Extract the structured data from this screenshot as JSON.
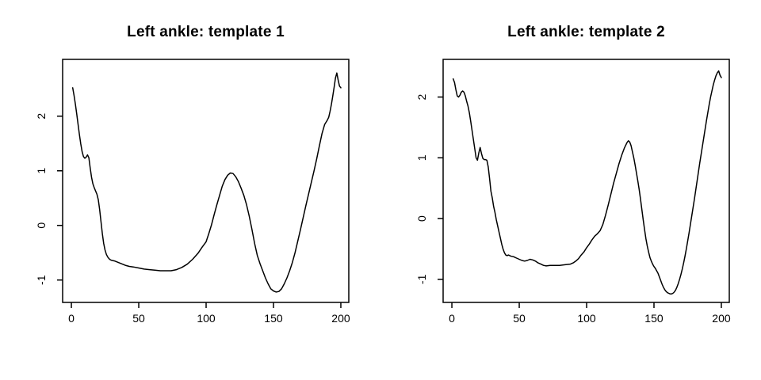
{
  "figure": {
    "background": "#ffffff",
    "line_color": "#000000",
    "text_color": "#000000"
  },
  "chart_data": [
    {
      "type": "line",
      "title": "Left ankle: template 1",
      "xlabel": "",
      "ylabel": "",
      "grid": false,
      "legend_position": "none",
      "x_ticks": [
        0,
        50,
        100,
        150,
        200
      ],
      "y_ticks": [
        -1,
        0,
        1,
        2
      ],
      "xlim": [
        -6.5,
        205.9
      ],
      "ylim": [
        -1.41,
        3.04
      ],
      "series": [
        {
          "name": "template 1",
          "color": "#000000",
          "points": [
            [
              1,
              2.52
            ],
            [
              2,
              2.38
            ],
            [
              3,
              2.22
            ],
            [
              4,
              2.04
            ],
            [
              5,
              1.85
            ],
            [
              6,
              1.66
            ],
            [
              7,
              1.49
            ],
            [
              8,
              1.35
            ],
            [
              9,
              1.26
            ],
            [
              10,
              1.23
            ],
            [
              11,
              1.25
            ],
            [
              12,
              1.29
            ],
            [
              13,
              1.24
            ],
            [
              14,
              1.05
            ],
            [
              15,
              0.88
            ],
            [
              16,
              0.76
            ],
            [
              17,
              0.69
            ],
            [
              18,
              0.63
            ],
            [
              19,
              0.57
            ],
            [
              20,
              0.47
            ],
            [
              21,
              0.29
            ],
            [
              22,
              0.07
            ],
            [
              23,
              -0.15
            ],
            [
              24,
              -0.33
            ],
            [
              25,
              -0.45
            ],
            [
              26,
              -0.53
            ],
            [
              27,
              -0.58
            ],
            [
              28,
              -0.61
            ],
            [
              29,
              -0.63
            ],
            [
              30,
              -0.64
            ],
            [
              32,
              -0.65
            ],
            [
              34,
              -0.67
            ],
            [
              36,
              -0.69
            ],
            [
              38,
              -0.71
            ],
            [
              40,
              -0.73
            ],
            [
              43,
              -0.75
            ],
            [
              46,
              -0.76
            ],
            [
              50,
              -0.78
            ],
            [
              54,
              -0.8
            ],
            [
              58,
              -0.81
            ],
            [
              62,
              -0.82
            ],
            [
              66,
              -0.83
            ],
            [
              70,
              -0.83
            ],
            [
              74,
              -0.83
            ],
            [
              78,
              -0.81
            ],
            [
              82,
              -0.77
            ],
            [
              86,
              -0.71
            ],
            [
              90,
              -0.62
            ],
            [
              94,
              -0.51
            ],
            [
              97,
              -0.4
            ],
            [
              100,
              -0.3
            ],
            [
              102,
              -0.15
            ],
            [
              104,
              0.01
            ],
            [
              106,
              0.2
            ],
            [
              108,
              0.38
            ],
            [
              110,
              0.55
            ],
            [
              112,
              0.72
            ],
            [
              114,
              0.84
            ],
            [
              116,
              0.92
            ],
            [
              118,
              0.96
            ],
            [
              120,
              0.95
            ],
            [
              122,
              0.89
            ],
            [
              124,
              0.8
            ],
            [
              126,
              0.68
            ],
            [
              128,
              0.55
            ],
            [
              130,
              0.38
            ],
            [
              132,
              0.17
            ],
            [
              134,
              -0.07
            ],
            [
              136,
              -0.33
            ],
            [
              138,
              -0.55
            ],
            [
              140,
              -0.7
            ],
            [
              142,
              -0.83
            ],
            [
              144,
              -0.96
            ],
            [
              146,
              -1.07
            ],
            [
              148,
              -1.16
            ],
            [
              150,
              -1.2
            ],
            [
              152,
              -1.22
            ],
            [
              154,
              -1.21
            ],
            [
              156,
              -1.16
            ],
            [
              158,
              -1.07
            ],
            [
              160,
              -0.96
            ],
            [
              162,
              -0.83
            ],
            [
              164,
              -0.68
            ],
            [
              166,
              -0.5
            ],
            [
              168,
              -0.29
            ],
            [
              170,
              -0.08
            ],
            [
              172,
              0.14
            ],
            [
              174,
              0.36
            ],
            [
              176,
              0.57
            ],
            [
              178,
              0.78
            ],
            [
              180,
              0.99
            ],
            [
              182,
              1.21
            ],
            [
              184,
              1.45
            ],
            [
              186,
              1.68
            ],
            [
              188,
              1.85
            ],
            [
              190,
              1.93
            ],
            [
              191,
              1.98
            ],
            [
              192,
              2.09
            ],
            [
              193,
              2.22
            ],
            [
              194,
              2.37
            ],
            [
              195,
              2.53
            ],
            [
              196,
              2.7
            ],
            [
              197,
              2.79
            ],
            [
              198,
              2.66
            ],
            [
              199,
              2.55
            ],
            [
              200,
              2.52
            ]
          ]
        }
      ]
    },
    {
      "type": "line",
      "title": "Left ankle: template 2",
      "xlabel": "",
      "ylabel": "",
      "grid": false,
      "legend_position": "none",
      "x_ticks": [
        0,
        50,
        100,
        150,
        200
      ],
      "y_ticks": [
        -1,
        0,
        1,
        2
      ],
      "xlim": [
        -6.5,
        205.9
      ],
      "ylim": [
        -1.38,
        2.62
      ],
      "series": [
        {
          "name": "template 2",
          "color": "#000000",
          "points": [
            [
              1,
              2.3
            ],
            [
              2,
              2.24
            ],
            [
              3,
              2.12
            ],
            [
              4,
              2.02
            ],
            [
              5,
              2.0
            ],
            [
              6,
              2.03
            ],
            [
              7,
              2.08
            ],
            [
              8,
              2.1
            ],
            [
              9,
              2.08
            ],
            [
              10,
              2.02
            ],
            [
              11,
              1.93
            ],
            [
              12,
              1.85
            ],
            [
              13,
              1.74
            ],
            [
              14,
              1.6
            ],
            [
              15,
              1.45
            ],
            [
              16,
              1.3
            ],
            [
              17,
              1.15
            ],
            [
              18,
              1.0
            ],
            [
              19,
              0.96
            ],
            [
              20,
              1.08
            ],
            [
              21,
              1.17
            ],
            [
              22,
              1.07
            ],
            [
              23,
              0.99
            ],
            [
              24,
              0.97
            ],
            [
              25,
              0.97
            ],
            [
              26,
              0.96
            ],
            [
              27,
              0.85
            ],
            [
              28,
              0.66
            ],
            [
              29,
              0.45
            ],
            [
              30,
              0.34
            ],
            [
              31,
              0.2
            ],
            [
              32,
              0.1
            ],
            [
              33,
              -0.02
            ],
            [
              34,
              -0.12
            ],
            [
              35,
              -0.22
            ],
            [
              36,
              -0.32
            ],
            [
              37,
              -0.42
            ],
            [
              38,
              -0.5
            ],
            [
              39,
              -0.56
            ],
            [
              40,
              -0.6
            ],
            [
              41,
              -0.61
            ],
            [
              42,
              -0.6
            ],
            [
              43,
              -0.61
            ],
            [
              44,
              -0.62
            ],
            [
              46,
              -0.63
            ],
            [
              48,
              -0.65
            ],
            [
              50,
              -0.67
            ],
            [
              52,
              -0.69
            ],
            [
              54,
              -0.7
            ],
            [
              56,
              -0.69
            ],
            [
              58,
              -0.67
            ],
            [
              60,
              -0.68
            ],
            [
              62,
              -0.7
            ],
            [
              64,
              -0.73
            ],
            [
              66,
              -0.75
            ],
            [
              68,
              -0.77
            ],
            [
              70,
              -0.78
            ],
            [
              73,
              -0.77
            ],
            [
              76,
              -0.77
            ],
            [
              80,
              -0.77
            ],
            [
              84,
              -0.76
            ],
            [
              88,
              -0.75
            ],
            [
              90,
              -0.73
            ],
            [
              92,
              -0.7
            ],
            [
              94,
              -0.66
            ],
            [
              96,
              -0.6
            ],
            [
              98,
              -0.55
            ],
            [
              100,
              -0.48
            ],
            [
              102,
              -0.42
            ],
            [
              104,
              -0.35
            ],
            [
              106,
              -0.29
            ],
            [
              108,
              -0.25
            ],
            [
              110,
              -0.2
            ],
            [
              112,
              -0.1
            ],
            [
              114,
              0.05
            ],
            [
              116,
              0.22
            ],
            [
              118,
              0.4
            ],
            [
              120,
              0.58
            ],
            [
              122,
              0.74
            ],
            [
              124,
              0.9
            ],
            [
              126,
              1.04
            ],
            [
              128,
              1.16
            ],
            [
              130,
              1.25
            ],
            [
              131,
              1.28
            ],
            [
              132,
              1.26
            ],
            [
              133,
              1.2
            ],
            [
              134,
              1.1
            ],
            [
              135,
              1.0
            ],
            [
              136,
              0.88
            ],
            [
              137,
              0.75
            ],
            [
              138,
              0.62
            ],
            [
              139,
              0.48
            ],
            [
              140,
              0.32
            ],
            [
              141,
              0.15
            ],
            [
              142,
              -0.02
            ],
            [
              143,
              -0.18
            ],
            [
              144,
              -0.33
            ],
            [
              145,
              -0.45
            ],
            [
              146,
              -0.55
            ],
            [
              147,
              -0.64
            ],
            [
              148,
              -0.7
            ],
            [
              149,
              -0.75
            ],
            [
              150,
              -0.79
            ],
            [
              151,
              -0.82
            ],
            [
              152,
              -0.86
            ],
            [
              153,
              -0.9
            ],
            [
              154,
              -0.96
            ],
            [
              155,
              -1.02
            ],
            [
              156,
              -1.08
            ],
            [
              157,
              -1.13
            ],
            [
              158,
              -1.17
            ],
            [
              159,
              -1.2
            ],
            [
              160,
              -1.22
            ],
            [
              161,
              -1.23
            ],
            [
              162,
              -1.24
            ],
            [
              163,
              -1.24
            ],
            [
              164,
              -1.23
            ],
            [
              165,
              -1.21
            ],
            [
              166,
              -1.18
            ],
            [
              167,
              -1.13
            ],
            [
              168,
              -1.07
            ],
            [
              169,
              -1.0
            ],
            [
              170,
              -0.92
            ],
            [
              171,
              -0.83
            ],
            [
              172,
              -0.73
            ],
            [
              173,
              -0.62
            ],
            [
              174,
              -0.5
            ],
            [
              175,
              -0.37
            ],
            [
              176,
              -0.24
            ],
            [
              177,
              -0.1
            ],
            [
              178,
              0.04
            ],
            [
              179,
              0.18
            ],
            [
              180,
              0.32
            ],
            [
              181,
              0.47
            ],
            [
              182,
              0.62
            ],
            [
              183,
              0.77
            ],
            [
              184,
              0.92
            ],
            [
              185,
              1.06
            ],
            [
              186,
              1.2
            ],
            [
              187,
              1.34
            ],
            [
              188,
              1.48
            ],
            [
              189,
              1.62
            ],
            [
              190,
              1.75
            ],
            [
              191,
              1.88
            ],
            [
              192,
              2.0
            ],
            [
              193,
              2.1
            ],
            [
              194,
              2.2
            ],
            [
              195,
              2.28
            ],
            [
              196,
              2.35
            ],
            [
              197,
              2.4
            ],
            [
              198,
              2.43
            ],
            [
              199,
              2.36
            ],
            [
              200,
              2.32
            ]
          ]
        }
      ]
    }
  ]
}
